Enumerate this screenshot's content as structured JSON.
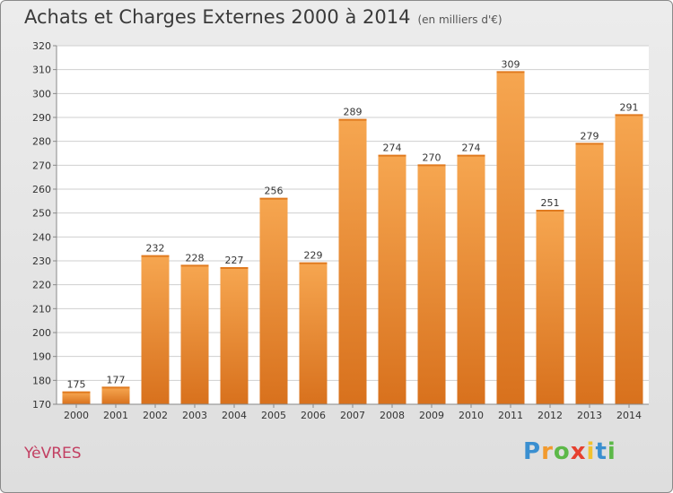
{
  "title": "Achats et Charges Externes 2000 à 2014",
  "subtitle": "(en milliers d'€)",
  "commune": "YèVRES",
  "logo": {
    "letters": [
      "P",
      "r",
      "o",
      "x",
      "i",
      "t",
      "i"
    ],
    "colors": [
      "#3a8fd0",
      "#f29a2e",
      "#5cb848",
      "#e6402f",
      "#f2c22e",
      "#3a8fd0",
      "#5cb848"
    ]
  },
  "colors": {
    "bar_top": "#f6a650",
    "bar_bottom": "#d8711d",
    "grid": "#cfcfcf",
    "plot_bg": "#ffffff"
  },
  "chart_data": {
    "type": "bar",
    "categories": [
      "2000",
      "2001",
      "2002",
      "2003",
      "2004",
      "2005",
      "2006",
      "2007",
      "2008",
      "2009",
      "2010",
      "2011",
      "2012",
      "2013",
      "2014"
    ],
    "values": [
      175,
      177,
      232,
      228,
      227,
      256,
      229,
      289,
      274,
      270,
      274,
      309,
      251,
      279,
      291
    ],
    "title": "Achats et Charges Externes 2000 à 2014",
    "subtitle": "(en milliers d'€)",
    "xlabel": "",
    "ylabel": "",
    "ylim": [
      170,
      320
    ],
    "yticks": [
      170,
      180,
      190,
      200,
      210,
      220,
      230,
      240,
      250,
      260,
      270,
      280,
      290,
      300,
      310,
      320
    ],
    "grid": true,
    "data_labels": true
  }
}
